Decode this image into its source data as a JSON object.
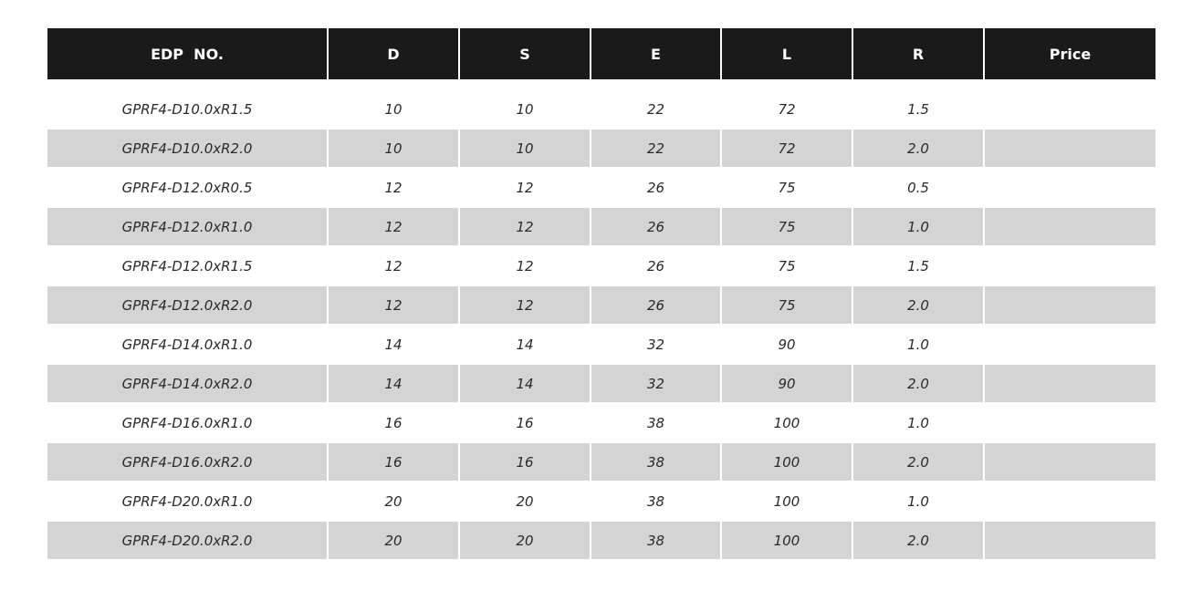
{
  "table": {
    "headers": [
      "EDP  NO.",
      "D",
      "S",
      "E",
      "L",
      "R",
      "Price"
    ],
    "rows": [
      [
        "GPRF4-D10.0xR1.5",
        "10",
        "10",
        "22",
        "72",
        "1.5",
        ""
      ],
      [
        "GPRF4-D10.0xR2.0",
        "10",
        "10",
        "22",
        "72",
        "2.0",
        ""
      ],
      [
        "GPRF4-D12.0xR0.5",
        "12",
        "12",
        "26",
        "75",
        "0.5",
        ""
      ],
      [
        "GPRF4-D12.0xR1.0",
        "12",
        "12",
        "26",
        "75",
        "1.0",
        ""
      ],
      [
        "GPRF4-D12.0xR1.5",
        "12",
        "12",
        "26",
        "75",
        "1.5",
        ""
      ],
      [
        "GPRF4-D12.0xR2.0",
        "12",
        "12",
        "26",
        "75",
        "2.0",
        ""
      ],
      [
        "GPRF4-D14.0xR1.0",
        "14",
        "14",
        "32",
        "90",
        "1.0",
        ""
      ],
      [
        "GPRF4-D14.0xR2.0",
        "14",
        "14",
        "32",
        "90",
        "2.0",
        ""
      ],
      [
        "GPRF4-D16.0xR1.0",
        "16",
        "16",
        "38",
        "100",
        "1.0",
        ""
      ],
      [
        "GPRF4-D16.0xR2.0",
        "16",
        "16",
        "38",
        "100",
        "2.0",
        ""
      ],
      [
        "GPRF4-D20.0xR1.0",
        "20",
        "20",
        "38",
        "100",
        "1.0",
        ""
      ],
      [
        "GPRF4-D20.0xR2.0",
        "20",
        "20",
        "38",
        "100",
        "2.0",
        ""
      ]
    ],
    "colors": {
      "header_bg": "#1a1a1a",
      "alt_row_bg": "#d4d4d4"
    }
  }
}
